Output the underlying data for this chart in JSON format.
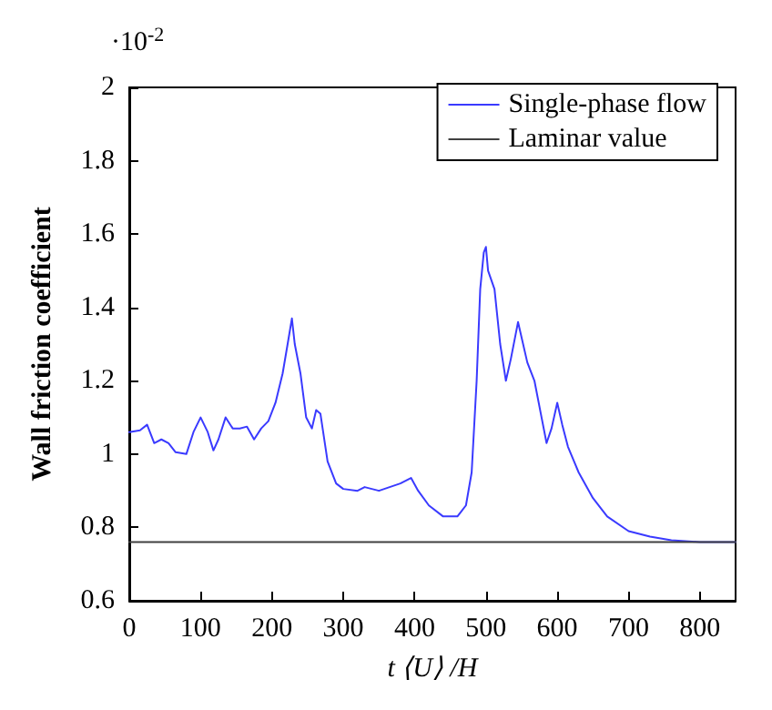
{
  "chart_data": {
    "type": "line",
    "xlabel": "t ⟨U⟩ /H",
    "ylabel": "Wall friction coefficient",
    "annotations": [
      "·10$^{-2}$"
    ],
    "xlim": [
      0,
      850
    ],
    "xticks": [
      0,
      100,
      200,
      300,
      400,
      500,
      600,
      700,
      800
    ],
    "ylim": [
      0.6,
      2
    ],
    "yticks": [
      0.6,
      0.8,
      1,
      1.2,
      1.4,
      1.6,
      1.8,
      2
    ],
    "grid": false,
    "legend": "top right",
    "marker": "none",
    "line_style": "solid",
    "series": [
      {
        "name": "Single-phase flow",
        "color": "#3a3aff",
        "x": [
          0,
          15,
          25,
          35,
          45,
          55,
          65,
          80,
          90,
          100,
          110,
          118,
          125,
          135,
          145,
          155,
          165,
          175,
          185,
          195,
          205,
          215,
          222,
          228,
          232,
          240,
          248,
          256,
          262,
          268,
          278,
          290,
          300,
          320,
          330,
          340,
          350,
          365,
          380,
          395,
          405,
          420,
          440,
          460,
          472,
          480,
          487,
          492,
          497,
          500,
          503,
          512,
          520,
          528,
          535,
          545,
          558,
          568,
          578,
          585,
          592,
          600,
          607,
          615,
          630,
          650,
          670,
          700,
          730,
          760,
          800,
          850
        ],
        "values": [
          1.06,
          1.065,
          1.08,
          1.03,
          1.04,
          1.03,
          1.005,
          1.0,
          1.06,
          1.1,
          1.06,
          1.01,
          1.04,
          1.1,
          1.07,
          1.07,
          1.075,
          1.04,
          1.07,
          1.09,
          1.14,
          1.22,
          1.3,
          1.37,
          1.3,
          1.22,
          1.1,
          1.07,
          1.12,
          1.11,
          0.98,
          0.92,
          0.905,
          0.9,
          0.91,
          0.905,
          0.9,
          0.91,
          0.92,
          0.935,
          0.9,
          0.86,
          0.83,
          0.83,
          0.86,
          0.95,
          1.2,
          1.45,
          1.55,
          1.565,
          1.5,
          1.45,
          1.3,
          1.2,
          1.26,
          1.36,
          1.25,
          1.2,
          1.1,
          1.03,
          1.07,
          1.14,
          1.08,
          1.02,
          0.95,
          0.88,
          0.83,
          0.79,
          0.775,
          0.765,
          0.76,
          0.76
        ]
      },
      {
        "name": "Laminar value",
        "color": "#404040",
        "x": [
          0,
          850
        ],
        "values": [
          0.76,
          0.76
        ]
      }
    ]
  }
}
